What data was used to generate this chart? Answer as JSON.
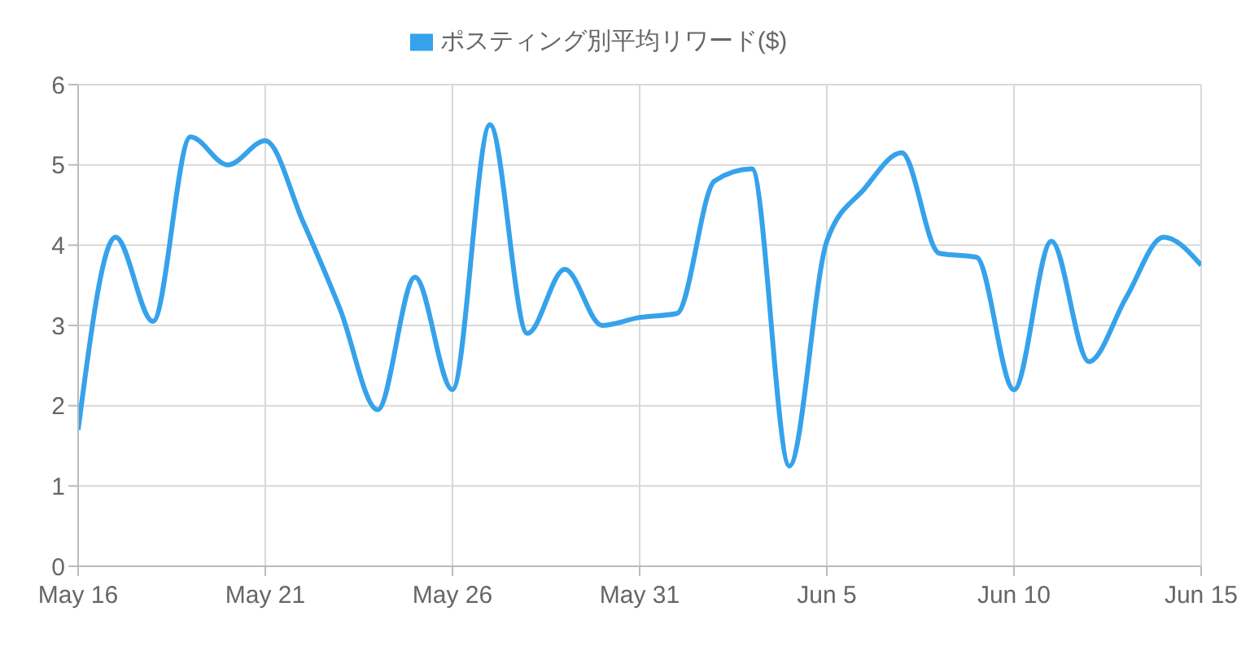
{
  "chart_data": {
    "type": "line",
    "x": [
      "--05-16",
      "--05-17",
      "--05-18",
      "--05-19",
      "--05-20",
      "--05-21",
      "--05-22",
      "--05-23",
      "--05-24",
      "--05-25",
      "--05-26",
      "--05-27",
      "--05-28",
      "--05-29",
      "--05-30",
      "--05-31",
      "--06-01",
      "--06-02",
      "--06-03",
      "--06-04",
      "--06-05",
      "--06-06",
      "--06-07",
      "--06-08",
      "--06-09",
      "--06-10",
      "--06-11",
      "--06-12",
      "--06-13",
      "--06-14",
      "--06-15"
    ],
    "series": [
      {
        "name": "ポスティング別平均リワード($)",
        "color": "#36a2eb",
        "values": [
          1.7,
          4.1,
          3.05,
          5.35,
          5.0,
          5.3,
          4.3,
          3.2,
          1.95,
          3.6,
          2.2,
          5.5,
          2.9,
          3.7,
          3.0,
          3.1,
          3.15,
          4.8,
          4.95,
          1.25,
          4.05,
          4.7,
          5.15,
          3.9,
          3.85,
          2.2,
          4.05,
          2.55,
          3.35,
          4.1,
          3.75
        ]
      }
    ],
    "xlim": [
      "--05-16",
      "--06-15"
    ],
    "xticks": [
      {
        "value": "--05-16",
        "label": "May 16"
      },
      {
        "value": "--05-21",
        "label": "May 21"
      },
      {
        "value": "--05-26",
        "label": "May 26"
      },
      {
        "value": "--05-31",
        "label": "May 31"
      },
      {
        "value": "--06-05",
        "label": "Jun 5"
      },
      {
        "value": "--06-10",
        "label": "Jun 10"
      },
      {
        "value": "--06-15",
        "label": "Jun 15"
      }
    ],
    "ylim": [
      0,
      6
    ],
    "yticks": [
      0,
      1,
      2,
      3,
      4,
      5,
      6
    ],
    "grid": true,
    "legend": "top",
    "marker": "none",
    "line_style": "solid"
  }
}
